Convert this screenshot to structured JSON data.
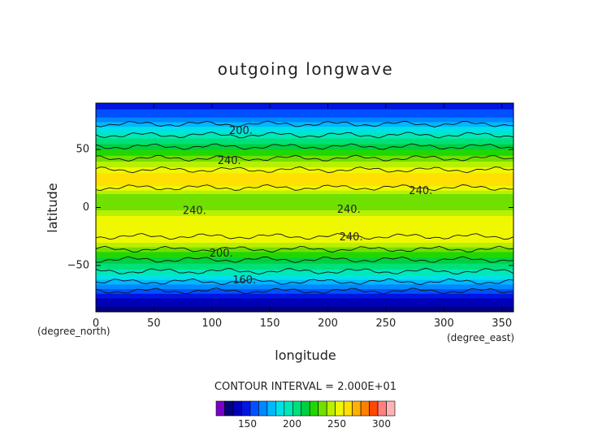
{
  "chart_data": {
    "type": "heatmap",
    "title": "outgoing longwave",
    "xlabel": "longitude",
    "ylabel": "latitude",
    "x_unit": "(degree_east)",
    "y_unit": "(degree_north)",
    "xlim": [
      0,
      360
    ],
    "ylim": [
      -90,
      90
    ],
    "x_ticks": [
      "0",
      "50",
      "100",
      "150",
      "200",
      "250",
      "300",
      "350"
    ],
    "x_tick_values": [
      0,
      50,
      100,
      150,
      200,
      250,
      300,
      350
    ],
    "y_ticks": [
      "50",
      "0",
      "−50"
    ],
    "y_tick_values": [
      50,
      0,
      -50
    ],
    "contour_interval_label": "CONTOUR INTERVAL = 2.000E+01",
    "contour_labels": [
      {
        "text": "200.",
        "lon": 125,
        "lat": 66
      },
      {
        "text": "240.",
        "lon": 115,
        "lat": 40
      },
      {
        "text": "240.",
        "lon": 85,
        "lat": -3
      },
      {
        "text": "240.",
        "lon": 218,
        "lat": -2
      },
      {
        "text": "240.",
        "lon": 280,
        "lat": 14
      },
      {
        "text": "240.",
        "lon": 220,
        "lat": -26
      },
      {
        "text": "200.",
        "lon": 108,
        "lat": -40
      },
      {
        "text": "160.",
        "lon": 128,
        "lat": -63
      }
    ],
    "zonal_mean_olr": [
      {
        "lat": 90,
        "value": 150
      },
      {
        "lat": 80,
        "value": 160
      },
      {
        "lat": 70,
        "value": 185
      },
      {
        "lat": 60,
        "value": 205
      },
      {
        "lat": 50,
        "value": 225
      },
      {
        "lat": 40,
        "value": 245
      },
      {
        "lat": 30,
        "value": 265
      },
      {
        "lat": 20,
        "value": 268
      },
      {
        "lat": 10,
        "value": 240
      },
      {
        "lat": 0,
        "value": 242
      },
      {
        "lat": -10,
        "value": 260
      },
      {
        "lat": -20,
        "value": 265
      },
      {
        "lat": -30,
        "value": 255
      },
      {
        "lat": -40,
        "value": 230
      },
      {
        "lat": -50,
        "value": 210
      },
      {
        "lat": -60,
        "value": 190
      },
      {
        "lat": -70,
        "value": 165
      },
      {
        "lat": -80,
        "value": 140
      },
      {
        "lat": -90,
        "value": 130
      }
    ],
    "colorbar": {
      "min": 115,
      "max": 315,
      "step": 10,
      "tick_labels": [
        "150",
        "200",
        "250",
        "300"
      ],
      "tick_values": [
        150,
        200,
        250,
        300
      ],
      "colors": [
        "#7a00c8",
        "#000080",
        "#0000b8",
        "#0016e0",
        "#0050ff",
        "#0088ff",
        "#00b8ff",
        "#00e0e8",
        "#00e8b8",
        "#00e078",
        "#00d040",
        "#20d800",
        "#70e000",
        "#b8f000",
        "#f0f800",
        "#ffe000",
        "#ffb000",
        "#ff8000",
        "#ff4800",
        "#ff8080",
        "#ffb4b4"
      ]
    }
  }
}
